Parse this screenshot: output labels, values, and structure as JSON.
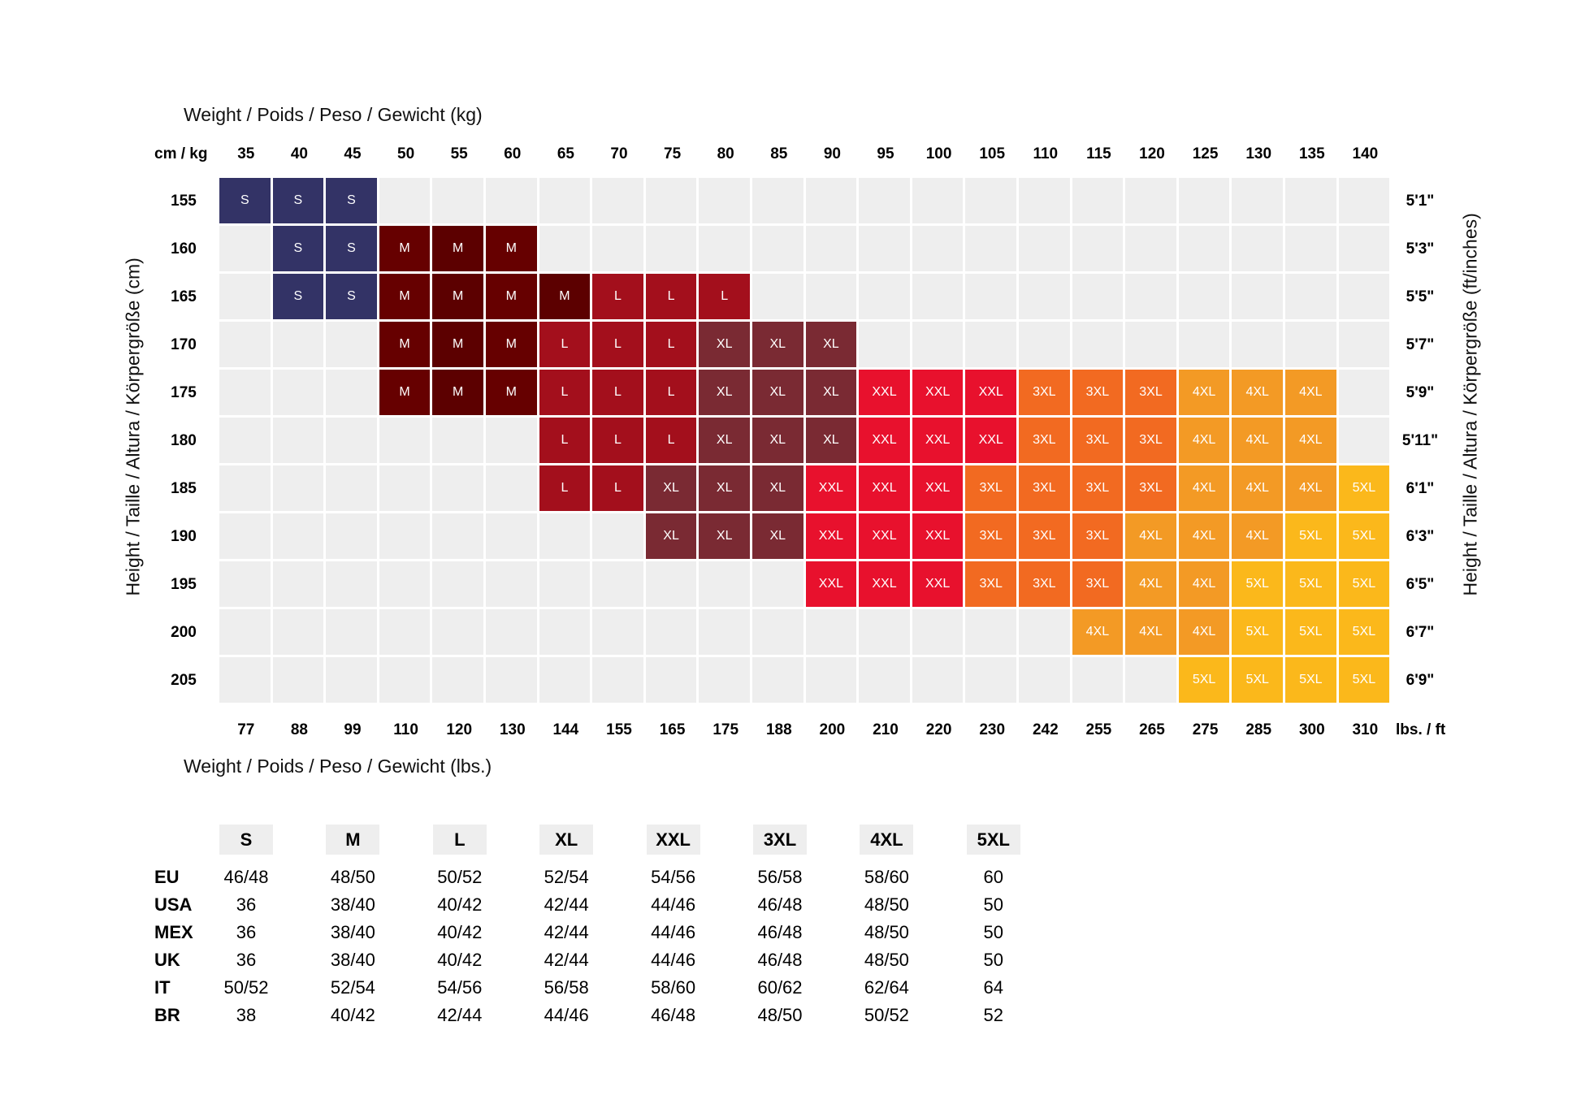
{
  "chart_data": {
    "type": "heatmap",
    "title_top": "Weight / Poids / Peso / Gewicht (kg)",
    "title_bottom": "Weight / Poids / Peso / Gewicht (lbs.)",
    "ylabel_left": "Height / Taille / Altura / Körpergröße (cm)",
    "ylabel_right": "Height / Taille / Altura / Körpergröße (ft/inches)",
    "corner_top": "cm / kg",
    "corner_bottom": "lbs. / ft",
    "x_kg": [
      "35",
      "40",
      "45",
      "50",
      "55",
      "60",
      "65",
      "70",
      "75",
      "80",
      "85",
      "90",
      "95",
      "100",
      "105",
      "110",
      "115",
      "120",
      "125",
      "130",
      "135",
      "140"
    ],
    "x_lbs": [
      "77",
      "88",
      "99",
      "110",
      "120",
      "130",
      "144",
      "155",
      "165",
      "175",
      "188",
      "200",
      "210",
      "220",
      "230",
      "242",
      "255",
      "265",
      "275",
      "285",
      "300",
      "310"
    ],
    "y_cm": [
      "155",
      "160",
      "165",
      "170",
      "175",
      "180",
      "185",
      "190",
      "195",
      "200",
      "205"
    ],
    "y_ft": [
      "5'1\"",
      "5'3\"",
      "5'5\"",
      "5'7\"",
      "5'9\"",
      "5'11\"",
      "6'1\"",
      "6'3\"",
      "6'5\"",
      "6'7\"",
      "6'9\""
    ],
    "cells": [
      [
        "S",
        "S",
        "S",
        "",
        "",
        "",
        "",
        "",
        "",
        "",
        "",
        "",
        "",
        "",
        "",
        "",
        "",
        "",
        "",
        "",
        "",
        ""
      ],
      [
        "",
        "S",
        "S",
        "M",
        "M",
        "M",
        "",
        "",
        "",
        "",
        "",
        "",
        "",
        "",
        "",
        "",
        "",
        "",
        "",
        "",
        "",
        ""
      ],
      [
        "",
        "S",
        "S",
        "M",
        "M",
        "M",
        "M",
        "L",
        "L",
        "L",
        "",
        "",
        "",
        "",
        "",
        "",
        "",
        "",
        "",
        "",
        "",
        ""
      ],
      [
        "",
        "",
        "",
        "M",
        "M",
        "M",
        "L",
        "L",
        "L",
        "XL",
        "XL",
        "XL",
        "",
        "",
        "",
        "",
        "",
        "",
        "",
        "",
        "",
        ""
      ],
      [
        "",
        "",
        "",
        "M",
        "M",
        "M",
        "L",
        "L",
        "L",
        "XL",
        "XL",
        "XL",
        "XXL",
        "XXL",
        "XXL",
        "3XL",
        "3XL",
        "3XL",
        "4XL",
        "4XL",
        "4XL",
        ""
      ],
      [
        "",
        "",
        "",
        "",
        "",
        "",
        "L",
        "L",
        "L",
        "XL",
        "XL",
        "XL",
        "XXL",
        "XXL",
        "XXL",
        "3XL",
        "3XL",
        "3XL",
        "4XL",
        "4XL",
        "4XL",
        ""
      ],
      [
        "",
        "",
        "",
        "",
        "",
        "",
        "L",
        "L",
        "XL",
        "XL",
        "XL",
        "XXL",
        "XXL",
        "XXL",
        "3XL",
        "3XL",
        "3XL",
        "3XL",
        "4XL",
        "4XL",
        "4XL",
        "5XL"
      ],
      [
        "",
        "",
        "",
        "",
        "",
        "",
        "",
        "",
        "XL",
        "XL",
        "XL",
        "XXL",
        "XXL",
        "XXL",
        "3XL",
        "3XL",
        "3XL",
        "4XL",
        "4XL",
        "4XL",
        "5XL",
        "5XL"
      ],
      [
        "",
        "",
        "",
        "",
        "",
        "",
        "",
        "",
        "",
        "",
        "",
        "XXL",
        "XXL",
        "XXL",
        "3XL",
        "3XL",
        "3XL",
        "4XL",
        "4XL",
        "5XL",
        "5XL",
        "5XL"
      ],
      [
        "",
        "",
        "",
        "",
        "",
        "",
        "",
        "",
        "",
        "",
        "",
        "",
        "",
        "",
        "",
        "",
        "4XL",
        "4XL",
        "4XL",
        "5XL",
        "5XL",
        "5XL"
      ],
      [
        "",
        "",
        "",
        "",
        "",
        "",
        "",
        "",
        "",
        "",
        "",
        "",
        "",
        "",
        "",
        "",
        "",
        "",
        "5XL",
        "5XL",
        "5XL",
        "5XL"
      ]
    ],
    "colors": {
      "S": "#333366",
      "M": "#660000",
      "M_dark": "#5c0000",
      "L": "#a30f1c",
      "XL": "#7a2a33",
      "XXL": "#e8112d",
      "3XL": "#f26a21",
      "4XL": "#f39a25",
      "5XL": "#fbb81b",
      "empty": "#eeeeee"
    }
  },
  "conversion": {
    "sizes": [
      "S",
      "M",
      "L",
      "XL",
      "XXL",
      "3XL",
      "4XL",
      "5XL"
    ],
    "rows": [
      {
        "label": "EU",
        "values": [
          "46/48",
          "48/50",
          "50/52",
          "52/54",
          "54/56",
          "56/58",
          "58/60",
          "60"
        ]
      },
      {
        "label": "USA",
        "values": [
          "36",
          "38/40",
          "40/42",
          "42/44",
          "44/46",
          "46/48",
          "48/50",
          "50"
        ]
      },
      {
        "label": "MEX",
        "values": [
          "36",
          "38/40",
          "40/42",
          "42/44",
          "44/46",
          "46/48",
          "48/50",
          "50"
        ]
      },
      {
        "label": "UK",
        "values": [
          "36",
          "38/40",
          "40/42",
          "42/44",
          "44/46",
          "46/48",
          "48/50",
          "50"
        ]
      },
      {
        "label": "IT",
        "values": [
          "50/52",
          "52/54",
          "54/56",
          "56/58",
          "58/60",
          "60/62",
          "62/64",
          "64"
        ]
      },
      {
        "label": "BR",
        "values": [
          "38",
          "40/42",
          "42/44",
          "44/46",
          "46/48",
          "48/50",
          "50/52",
          "52"
        ]
      }
    ]
  }
}
